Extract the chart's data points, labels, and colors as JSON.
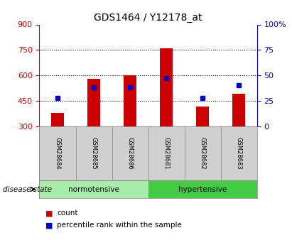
{
  "title": "GDS1464 / Y12178_at",
  "samples": [
    "GSM28684",
    "GSM28685",
    "GSM28686",
    "GSM28681",
    "GSM28682",
    "GSM28683"
  ],
  "bar_base": 300,
  "bar_tops": [
    380,
    580,
    600,
    760,
    415,
    490
  ],
  "percentile_values": [
    28,
    38,
    38,
    47,
    28,
    40
  ],
  "bar_color": "#cc0000",
  "pct_color": "#0000cc",
  "ylim_left": [
    300,
    900
  ],
  "ylim_right": [
    0,
    100
  ],
  "yticks_left": [
    300,
    450,
    600,
    750,
    900
  ],
  "yticks_right": [
    0,
    25,
    50,
    75,
    100
  ],
  "group1_label": "normotensive",
  "group2_label": "hypertensive",
  "group1_color": "#aaeaaa",
  "group2_color": "#44cc44",
  "sample_box_color": "#d0d0d0",
  "label_color_left": "#cc0000",
  "label_color_right": "#0000cc",
  "bg_color": "#ffffff",
  "plot_bg_color": "#ffffff",
  "legend_count_label": "count",
  "legend_pct_label": "percentile rank within the sample",
  "disease_state_label": "disease state"
}
